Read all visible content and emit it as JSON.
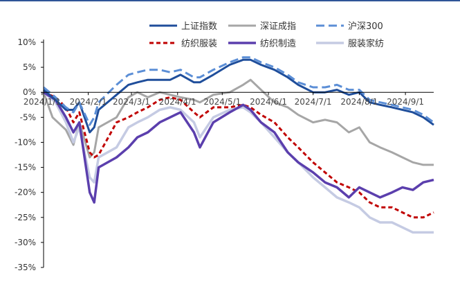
{
  "colors": {
    "top_rule": "#2f5597",
    "axis": "#000000"
  },
  "chart_data": {
    "type": "line",
    "title": "",
    "xlabel": "",
    "ylabel": "",
    "ylim": [
      -35,
      10
    ],
    "y_ticks": [
      10,
      5,
      0,
      -5,
      -10,
      -15,
      -20,
      -25,
      -30,
      -35
    ],
    "y_tick_labels": [
      "10%",
      "5%",
      "0%",
      "-5%",
      "-10%",
      "-15%",
      "-20%",
      "-25%",
      "-30%",
      "-35%"
    ],
    "x_range": [
      "2024-01-02",
      "2024-09-20"
    ],
    "x_ticks": [
      "2024-01-01",
      "2024-02-01",
      "2024-03-01",
      "2024-04-01",
      "2024-05-01",
      "2024-06-01",
      "2024-07-01",
      "2024-08-01",
      "2024-09-01"
    ],
    "x_tick_labels": [
      "2024/1/1",
      "2024/2/1",
      "2024/3/1",
      "2024/4/1",
      "2024/5/1",
      "2024/6/1",
      "2024/7/1",
      "2024/8/1",
      "2024/9/1"
    ],
    "grid": false,
    "legend_position": "top-right",
    "series": [
      {
        "name": "上证指数",
        "color": "#1f4e9b",
        "style": "solid",
        "width": 3,
        "x": [
          "2024-01-02",
          "2024-01-10",
          "2024-01-17",
          "2024-01-22",
          "2024-01-26",
          "2024-02-02",
          "2024-02-05",
          "2024-02-08",
          "2024-02-20",
          "2024-02-28",
          "2024-03-05",
          "2024-03-12",
          "2024-03-20",
          "2024-03-27",
          "2024-04-03",
          "2024-04-12",
          "2024-04-16",
          "2024-04-25",
          "2024-05-06",
          "2024-05-15",
          "2024-05-20",
          "2024-05-27",
          "2024-06-05",
          "2024-06-14",
          "2024-06-21",
          "2024-07-01",
          "2024-07-09",
          "2024-07-17",
          "2024-07-25",
          "2024-08-01",
          "2024-08-08",
          "2024-08-15",
          "2024-08-23",
          "2024-08-30",
          "2024-09-06",
          "2024-09-13",
          "2024-09-20"
        ],
        "y": [
          0.5,
          -1.5,
          -3.5,
          -3.5,
          -2,
          -8,
          -7,
          -3.5,
          -0.5,
          1.5,
          2,
          2.5,
          2.5,
          2.5,
          3.5,
          2,
          2,
          3.5,
          5.5,
          6.5,
          6.5,
          5.5,
          4.5,
          3,
          1.5,
          0,
          0,
          0.5,
          -0.5,
          0,
          -2,
          -2.5,
          -3,
          -3.5,
          -4,
          -5,
          -6.5
        ]
      },
      {
        "name": "深证成指",
        "color": "#a6a6a6",
        "style": "solid",
        "width": 3,
        "x": [
          "2024-01-02",
          "2024-01-08",
          "2024-01-17",
          "2024-01-22",
          "2024-01-26",
          "2024-02-02",
          "2024-02-05",
          "2024-02-08",
          "2024-02-20",
          "2024-02-28",
          "2024-03-05",
          "2024-03-12",
          "2024-03-20",
          "2024-03-27",
          "2024-04-03",
          "2024-04-12",
          "2024-04-16",
          "2024-04-25",
          "2024-05-06",
          "2024-05-15",
          "2024-05-20",
          "2024-05-27",
          "2024-06-05",
          "2024-06-14",
          "2024-06-21",
          "2024-07-01",
          "2024-07-09",
          "2024-07-17",
          "2024-07-25",
          "2024-08-01",
          "2024-08-08",
          "2024-08-15",
          "2024-08-23",
          "2024-08-30",
          "2024-09-06",
          "2024-09-13",
          "2024-09-20"
        ],
        "y": [
          0,
          -5,
          -7.5,
          -10.5,
          -6,
          -13,
          -12,
          -7,
          -5,
          -1,
          0,
          -1,
          0,
          -0.5,
          -1,
          -1.5,
          -2,
          -0.5,
          0,
          1.5,
          2.5,
          0.5,
          -2,
          -3,
          -4.5,
          -6,
          -5.5,
          -6,
          -8,
          -7,
          -10,
          -11,
          -12,
          -13,
          -14,
          -14.5,
          -14.5
        ]
      },
      {
        "name": "沪深300",
        "color": "#5b8ed6",
        "style": "dash",
        "width": 3,
        "x": [
          "2024-01-02",
          "2024-01-10",
          "2024-01-17",
          "2024-01-22",
          "2024-01-26",
          "2024-02-02",
          "2024-02-05",
          "2024-02-08",
          "2024-02-20",
          "2024-02-28",
          "2024-03-05",
          "2024-03-12",
          "2024-03-20",
          "2024-03-27",
          "2024-04-03",
          "2024-04-12",
          "2024-04-16",
          "2024-04-25",
          "2024-05-06",
          "2024-05-15",
          "2024-05-20",
          "2024-05-27",
          "2024-06-05",
          "2024-06-14",
          "2024-06-21",
          "2024-07-01",
          "2024-07-09",
          "2024-07-17",
          "2024-07-25",
          "2024-08-01",
          "2024-08-08",
          "2024-08-15",
          "2024-08-23",
          "2024-08-30",
          "2024-09-06",
          "2024-09-13",
          "2024-09-20"
        ],
        "y": [
          1,
          -1,
          -3,
          -4,
          -2,
          -6.5,
          -5,
          -2,
          1.5,
          3.5,
          4,
          4.5,
          4.5,
          4,
          4.5,
          3,
          3,
          4.5,
          6,
          7,
          7,
          6,
          5,
          3.5,
          2,
          1,
          1,
          1.5,
          0.5,
          0.5,
          -1.5,
          -2,
          -2.5,
          -3,
          -3.5,
          -4.5,
          -6
        ]
      },
      {
        "name": "纺织服装",
        "color": "#c00000",
        "style": "dash",
        "width": 3,
        "x": [
          "2024-01-02",
          "2024-01-10",
          "2024-01-17",
          "2024-01-22",
          "2024-01-26",
          "2024-02-02",
          "2024-02-05",
          "2024-02-08",
          "2024-02-20",
          "2024-02-28",
          "2024-03-05",
          "2024-03-12",
          "2024-03-20",
          "2024-03-27",
          "2024-04-03",
          "2024-04-12",
          "2024-04-16",
          "2024-04-25",
          "2024-05-06",
          "2024-05-15",
          "2024-05-20",
          "2024-05-27",
          "2024-06-05",
          "2024-06-14",
          "2024-06-21",
          "2024-07-01",
          "2024-07-09",
          "2024-07-17",
          "2024-07-25",
          "2024-08-01",
          "2024-08-08",
          "2024-08-15",
          "2024-08-23",
          "2024-08-30",
          "2024-09-06",
          "2024-09-13",
          "2024-09-20"
        ],
        "y": [
          0,
          -1,
          -3,
          -6,
          -4,
          -12,
          -13,
          -12.5,
          -6,
          -5,
          -4,
          -3,
          -1.5,
          -1,
          -1.5,
          -4,
          -5,
          -3,
          -3,
          -2.5,
          -3,
          -4.5,
          -6,
          -9,
          -11,
          -14,
          -16,
          -18,
          -19,
          -20,
          -22,
          -23,
          -23,
          -24,
          -25,
          -25,
          -24
        ]
      },
      {
        "name": "纺织制造",
        "color": "#5b3fad",
        "style": "solid",
        "width": 3.5,
        "x": [
          "2024-01-02",
          "2024-01-10",
          "2024-01-17",
          "2024-01-22",
          "2024-01-26",
          "2024-02-02",
          "2024-02-05",
          "2024-02-08",
          "2024-02-20",
          "2024-02-28",
          "2024-03-05",
          "2024-03-12",
          "2024-03-20",
          "2024-03-27",
          "2024-04-03",
          "2024-04-12",
          "2024-04-16",
          "2024-04-25",
          "2024-05-06",
          "2024-05-15",
          "2024-05-20",
          "2024-05-27",
          "2024-06-05",
          "2024-06-14",
          "2024-06-21",
          "2024-07-01",
          "2024-07-09",
          "2024-07-17",
          "2024-07-25",
          "2024-08-01",
          "2024-08-08",
          "2024-08-15",
          "2024-08-23",
          "2024-08-30",
          "2024-09-06",
          "2024-09-13",
          "2024-09-20"
        ],
        "y": [
          0,
          -1.5,
          -5,
          -8,
          -6,
          -20,
          -22,
          -15,
          -13,
          -11,
          -9,
          -8,
          -6,
          -5,
          -4,
          -8,
          -11,
          -6,
          -4,
          -2.5,
          -3.5,
          -6,
          -8,
          -12,
          -14,
          -16,
          -18,
          -19,
          -21,
          -19,
          -20,
          -21,
          -20,
          -19,
          -19.5,
          -18,
          -17.5
        ]
      },
      {
        "name": "服装家纺",
        "color": "#c5cbe3",
        "style": "solid",
        "width": 3.5,
        "x": [
          "2024-01-02",
          "2024-01-10",
          "2024-01-17",
          "2024-01-22",
          "2024-01-26",
          "2024-02-02",
          "2024-02-05",
          "2024-02-08",
          "2024-02-20",
          "2024-02-28",
          "2024-03-05",
          "2024-03-12",
          "2024-03-20",
          "2024-03-27",
          "2024-04-03",
          "2024-04-12",
          "2024-04-16",
          "2024-04-25",
          "2024-05-06",
          "2024-05-15",
          "2024-05-20",
          "2024-05-27",
          "2024-06-05",
          "2024-06-14",
          "2024-06-21",
          "2024-07-01",
          "2024-07-09",
          "2024-07-17",
          "2024-07-25",
          "2024-08-01",
          "2024-08-08",
          "2024-08-15",
          "2024-08-23",
          "2024-08-30",
          "2024-09-06",
          "2024-09-13",
          "2024-09-20"
        ],
        "y": [
          0,
          -2,
          -6,
          -10,
          -7,
          -17,
          -18,
          -13,
          -11,
          -7,
          -6,
          -5,
          -3.5,
          -3,
          -3.5,
          -6,
          -9,
          -5,
          -3.5,
          -3,
          -4,
          -6,
          -9,
          -12,
          -14,
          -17,
          -19,
          -21,
          -22,
          -23,
          -25,
          -26,
          -26,
          -27,
          -28,
          -28,
          -28
        ]
      }
    ]
  }
}
